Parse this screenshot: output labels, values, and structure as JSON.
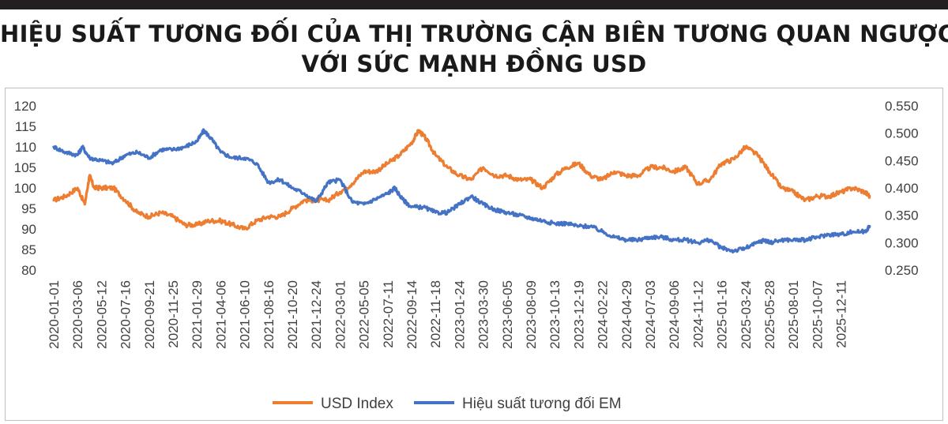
{
  "title": {
    "line1": "HIỆU SUẤT TƯƠNG ĐỐI CỦA THỊ TRƯỜNG CẬN BIÊN TƯƠNG QUAN NGƯỢC",
    "line2": "VỚI SỨC MẠNH ĐỒNG USD"
  },
  "chart_data": {
    "type": "line",
    "legend_position": "bottom",
    "grid": false,
    "y_left": {
      "ticks": [
        120,
        115,
        110,
        105,
        100,
        95,
        90,
        85,
        80
      ],
      "range": [
        80,
        120
      ]
    },
    "y_right": {
      "ticks": [
        "0.550",
        "0.500",
        "0.450",
        "0.400",
        "0.350",
        "0.300",
        "0.250"
      ],
      "range": [
        0.25,
        0.55
      ]
    },
    "x_tick_labels": [
      "2020-01-01",
      "2020-03-06",
      "2020-05-12",
      "2020-07-16",
      "2020-09-21",
      "2020-11-25",
      "2021-01-29",
      "2021-04-06",
      "2021-06-10",
      "2021-08-16",
      "2021-10-20",
      "2021-12-24",
      "2022-03-01",
      "2022-05-05",
      "2022-07-11",
      "2022-09-14",
      "2022-11-18",
      "2023-01-24",
      "2023-03-30",
      "2023-06-05",
      "2023-08-09",
      "2023-10-13",
      "2023-12-19",
      "2024-02-22",
      "2024-04-29",
      "2024-07-03",
      "2024-09-06",
      "2024-11-12",
      "2025-01-16",
      "2025-03-24",
      "2025-05-28",
      "2025-08-01",
      "2025-10-07",
      "2025-12-11"
    ],
    "x_range": [
      0,
      34.6
    ],
    "series": [
      {
        "name": "USD Index",
        "axis": "left",
        "color": "#ed7d31",
        "x": [
          0,
          0.5,
          1,
          1.3,
          1.5,
          1.7,
          2,
          2.5,
          3,
          3.5,
          4,
          4.5,
          5,
          5.5,
          6,
          6.5,
          7,
          7.5,
          8,
          8.5,
          9,
          9.5,
          10,
          10.5,
          11,
          11.5,
          12,
          12.5,
          13,
          13.5,
          14,
          14.5,
          15,
          15.3,
          15.6,
          16,
          16.5,
          17,
          17.5,
          18,
          18.5,
          19,
          19.5,
          20,
          20.5,
          21,
          21.5,
          22,
          22.5,
          23,
          23.5,
          24,
          24.5,
          25,
          25.5,
          26,
          26.5,
          27,
          27.5,
          28,
          28.5,
          29,
          29.5,
          30,
          30.5,
          31,
          31.5,
          32,
          32.5,
          33,
          33.5,
          34,
          34.2
        ],
        "values": [
          97,
          98,
          100,
          96,
          103,
          100,
          100,
          100,
          97,
          94,
          93,
          94,
          93,
          91,
          91,
          92,
          92,
          91,
          90,
          92,
          93,
          93,
          95,
          97,
          97,
          97,
          99,
          101,
          104,
          104,
          106,
          108,
          111,
          114,
          112,
          108,
          105,
          103,
          102,
          105,
          103,
          103,
          102,
          102,
          100,
          103,
          105,
          106,
          103,
          102,
          104,
          103,
          103,
          105,
          105,
          104,
          105,
          101,
          102,
          106,
          107,
          110,
          108,
          104,
          100,
          99,
          97,
          98,
          98,
          99,
          100,
          99,
          98
        ]
      },
      {
        "name": "Hiệu suất tương đối EM",
        "axis": "right",
        "color": "#4472c4",
        "x": [
          0,
          0.5,
          1,
          1.2,
          1.5,
          2,
          2.5,
          3,
          3.5,
          4,
          4.5,
          5,
          5.5,
          6,
          6.3,
          6.6,
          7,
          7.5,
          8,
          8.5,
          9,
          9.5,
          10,
          10.5,
          11,
          11.5,
          12,
          12.5,
          13,
          13.5,
          14,
          14.3,
          14.6,
          15,
          15.5,
          16,
          16.5,
          17,
          17.5,
          18,
          18.5,
          19,
          19.5,
          20,
          20.5,
          21,
          21.5,
          22,
          22.5,
          23,
          23.5,
          24,
          24.5,
          25,
          25.5,
          26,
          26.5,
          27,
          27.5,
          28,
          28.5,
          29,
          29.5,
          29.8,
          30,
          30.5,
          31,
          31.5,
          32,
          32.5,
          33,
          33.5,
          34,
          34.2
        ],
        "values": [
          0.475,
          0.465,
          0.46,
          0.475,
          0.455,
          0.45,
          0.445,
          0.46,
          0.465,
          0.455,
          0.47,
          0.47,
          0.475,
          0.485,
          0.505,
          0.49,
          0.465,
          0.455,
          0.455,
          0.445,
          0.41,
          0.415,
          0.4,
          0.39,
          0.375,
          0.41,
          0.415,
          0.375,
          0.37,
          0.38,
          0.39,
          0.4,
          0.38,
          0.365,
          0.365,
          0.355,
          0.355,
          0.37,
          0.385,
          0.37,
          0.36,
          0.355,
          0.35,
          0.345,
          0.34,
          0.335,
          0.335,
          0.33,
          0.33,
          0.32,
          0.31,
          0.305,
          0.305,
          0.31,
          0.31,
          0.305,
          0.305,
          0.3,
          0.305,
          0.29,
          0.285,
          0.29,
          0.3,
          0.305,
          0.3,
          0.305,
          0.305,
          0.305,
          0.31,
          0.315,
          0.315,
          0.32,
          0.32,
          0.33
        ]
      }
    ]
  }
}
